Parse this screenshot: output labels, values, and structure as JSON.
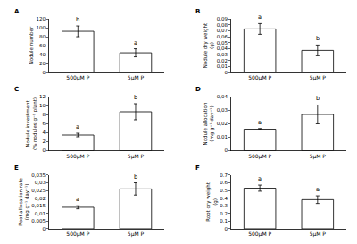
{
  "chart_data": [
    {
      "type": "bar",
      "panel": "A",
      "ylabel": "Nodule number",
      "categories": [
        "500µM P",
        "5µM P"
      ],
      "values": [
        92,
        44
      ],
      "errors": [
        12,
        9
      ],
      "letters": [
        "b",
        "a"
      ],
      "color": "#ffffff",
      "ylim": [
        0,
        120
      ],
      "yticks": [
        0,
        20,
        40,
        60,
        80,
        100,
        120
      ],
      "grid": false
    },
    {
      "type": "bar",
      "panel": "B",
      "ylabel": "Nodule dry weight (g)",
      "categories": [
        "500µM P",
        "5µM P"
      ],
      "values": [
        0.073,
        0.037
      ],
      "errors": [
        0.009,
        0.009
      ],
      "letters": [
        "a",
        "b"
      ],
      "color": "#ffffff",
      "ylim": [
        0,
        0.09
      ],
      "yticks": [
        0,
        {
          "value": 0.01,
          "label": "0,01"
        },
        {
          "value": 0.02,
          "label": "0,02"
        },
        {
          "value": 0.03,
          "label": "0,03"
        },
        {
          "value": 0.04,
          "label": "0,04"
        },
        {
          "value": 0.05,
          "label": "0,05"
        },
        {
          "value": 0.06,
          "label": "0,06"
        },
        {
          "value": 0.07,
          "label": "0,07"
        },
        {
          "value": 0.08,
          "label": "0,08"
        },
        {
          "value": 0.09,
          "label": "0,09"
        }
      ],
      "grid": false
    },
    {
      "type": "bar",
      "panel": "C",
      "ylabel": "Nodule investment (% nodules g⁻¹ plant)",
      "categories": [
        "500µM P",
        "5µM P"
      ],
      "values": [
        3.5,
        8.7
      ],
      "errors": [
        0.4,
        1.8
      ],
      "letters": [
        "a",
        "b"
      ],
      "color": "#ffffff",
      "ylim": [
        0,
        12
      ],
      "yticks": [
        0,
        2,
        4,
        6,
        8,
        10,
        12
      ],
      "grid": false
    },
    {
      "type": "bar",
      "panel": "D",
      "ylabel": "Nodule allocation (mg g⁻¹ day⁻¹)",
      "categories": [
        "500µM P",
        "5µM P"
      ],
      "values": [
        0.016,
        0.027
      ],
      "errors": [
        0.0005,
        0.007
      ],
      "letters": [
        "a",
        "b"
      ],
      "color": "#ffffff",
      "ylim": [
        0,
        0.04
      ],
      "yticks": [
        0,
        {
          "value": 0.01,
          "label": "0,01"
        },
        {
          "value": 0.02,
          "label": "0,02"
        },
        {
          "value": 0.03,
          "label": "0,03"
        },
        {
          "value": 0.04,
          "label": "0,04"
        }
      ],
      "grid": false
    },
    {
      "type": "bar",
      "panel": "E",
      "ylabel": "Root allocation rate (mg g⁻¹ day⁻¹)",
      "categories": [
        "500µM P",
        "5µM P"
      ],
      "values": [
        0.014,
        0.026
      ],
      "errors": [
        0.001,
        0.004
      ],
      "letters": [
        "a",
        "b"
      ],
      "color": "#ffffff",
      "ylim": [
        0,
        0.035
      ],
      "yticks": [
        0,
        {
          "value": 0.005,
          "label": "0,005"
        },
        {
          "value": 0.01,
          "label": "0,01"
        },
        {
          "value": 0.015,
          "label": "0,015"
        },
        {
          "value": 0.02,
          "label": "0,02"
        },
        {
          "value": 0.025,
          "label": "0,025"
        },
        {
          "value": 0.03,
          "label": "0,03"
        },
        {
          "value": 0.035,
          "label": "0,035"
        }
      ],
      "grid": false
    },
    {
      "type": "bar",
      "panel": "F",
      "ylabel": "Root dry weight (g)",
      "categories": [
        "500µM P",
        "5µM P"
      ],
      "values": [
        0.53,
        0.38
      ],
      "errors": [
        0.04,
        0.05
      ],
      "letters": [
        "a",
        "a"
      ],
      "color": "#ffffff",
      "ylim": [
        0,
        0.7
      ],
      "yticks": [
        0,
        0.1,
        0.2,
        0.3,
        0.4,
        0.5,
        0.6,
        0.7
      ],
      "grid": false
    }
  ]
}
